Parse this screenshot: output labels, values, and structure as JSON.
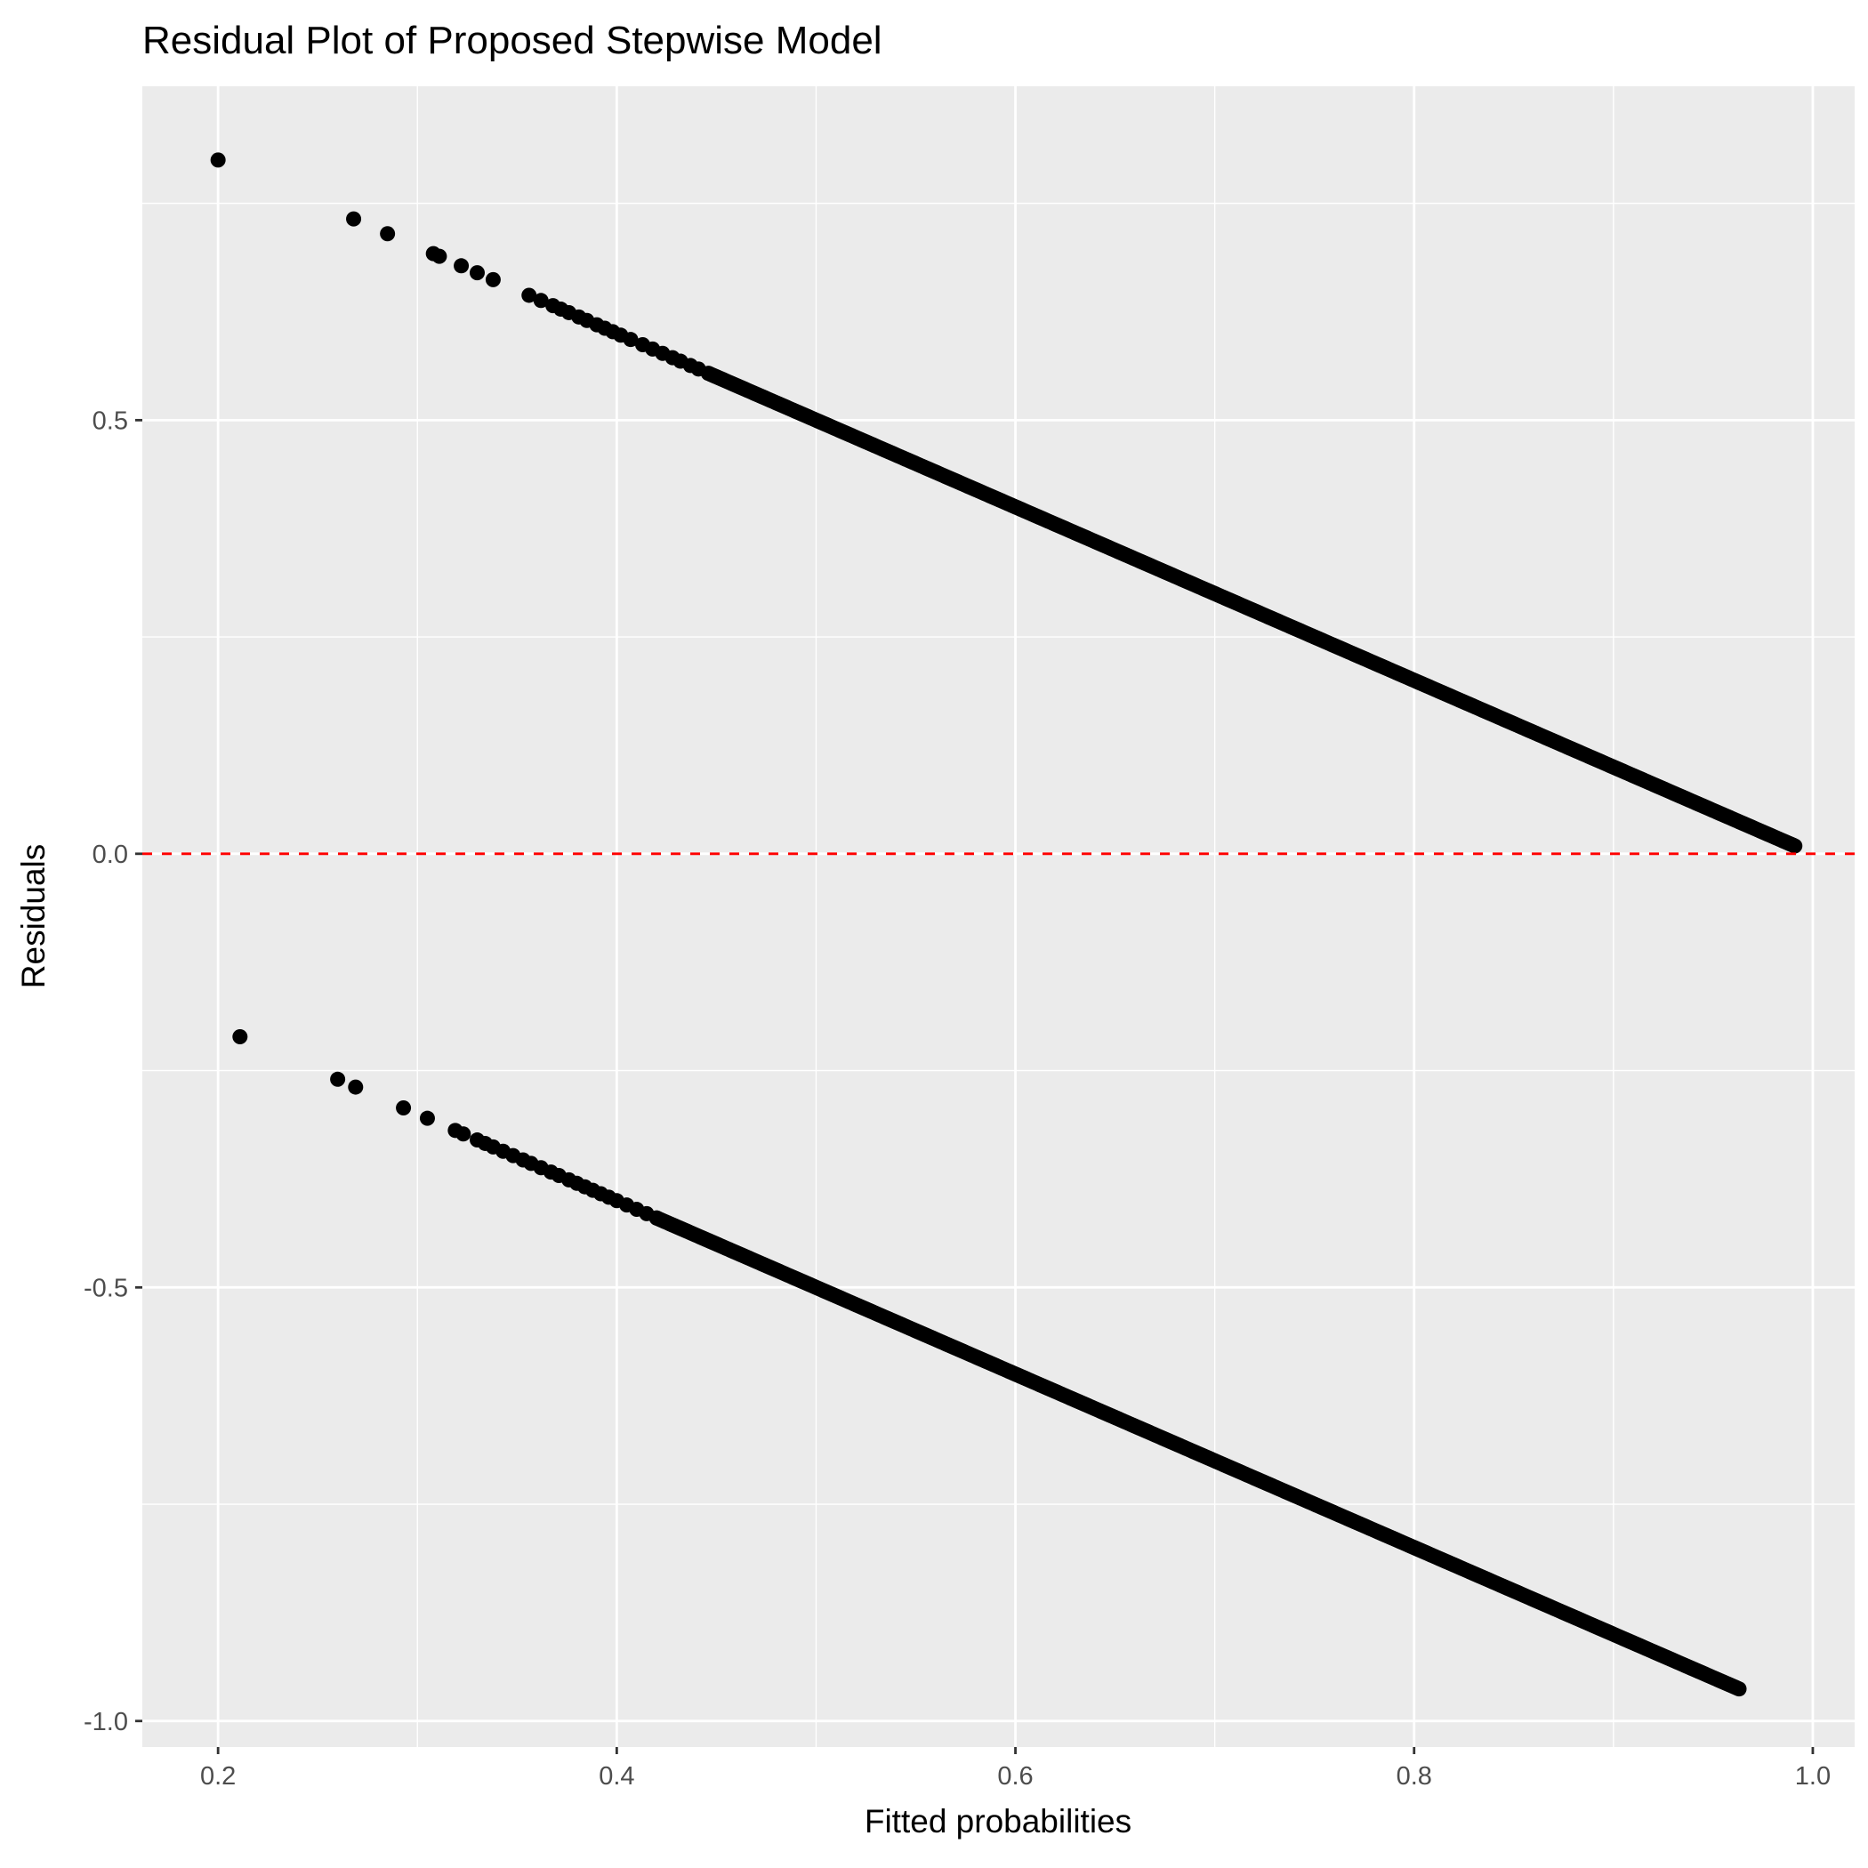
{
  "chart_data": {
    "type": "scatter",
    "title": "Residual Plot of Proposed Stepwise Model",
    "xlabel": "Fitted probabilities",
    "ylabel": "Residuals",
    "xlim": [
      0.162,
      1.021
    ],
    "ylim": [
      -1.03,
      0.885
    ],
    "x_ticks": [
      0.2,
      0.4,
      0.6,
      0.8,
      1.0
    ],
    "x_tick_labels": [
      "0.2",
      "0.4",
      "0.6",
      "0.8",
      "1.0"
    ],
    "y_ticks": [
      -1.0,
      -0.5,
      0.0,
      0.5
    ],
    "y_tick_labels": [
      "-1.0",
      "-0.5",
      "0.0",
      "0.5"
    ],
    "grid": true,
    "panel_background": "#ebebeb",
    "grid_color": "#ffffff",
    "point_color": "#000000",
    "reference_line": {
      "y": 0,
      "color": "#ff0000",
      "style": "dashed"
    },
    "series": [
      {
        "points_x": [
          0.2,
          0.268,
          0.285,
          0.308,
          0.311,
          0.322,
          0.33,
          0.338,
          0.356,
          0.362,
          0.368,
          0.372,
          0.376,
          0.381,
          0.385,
          0.39,
          0.394,
          0.398,
          0.402,
          0.407,
          0.413,
          0.418,
          0.423,
          0.428,
          0.432,
          0.437,
          0.441,
          0.446
        ],
        "points_y": [
          0.8,
          0.732,
          0.715,
          0.692,
          0.689,
          0.678,
          0.67,
          0.662,
          0.644,
          0.638,
          0.632,
          0.628,
          0.624,
          0.619,
          0.615,
          0.61,
          0.606,
          0.602,
          0.598,
          0.593,
          0.587,
          0.582,
          0.577,
          0.572,
          0.568,
          0.563,
          0.559,
          0.554
        ],
        "dense_from": 0.446,
        "dense_to": 0.991
      },
      {
        "points_x": [
          0.211,
          0.26,
          0.269,
          0.293,
          0.305,
          0.319,
          0.323,
          0.33,
          0.334,
          0.338,
          0.343,
          0.348,
          0.353,
          0.357,
          0.362,
          0.367,
          0.371,
          0.376,
          0.38,
          0.384,
          0.388,
          0.392,
          0.396,
          0.4,
          0.405,
          0.41,
          0.415,
          0.42
        ],
        "points_y": [
          -0.211,
          -0.26,
          -0.269,
          -0.293,
          -0.305,
          -0.319,
          -0.323,
          -0.33,
          -0.334,
          -0.338,
          -0.343,
          -0.348,
          -0.353,
          -0.357,
          -0.362,
          -0.367,
          -0.371,
          -0.376,
          -0.38,
          -0.384,
          -0.388,
          -0.392,
          -0.396,
          -0.4,
          -0.405,
          -0.41,
          -0.415,
          -0.42
        ],
        "dense_from": 0.42,
        "dense_to": 0.963
      }
    ]
  }
}
